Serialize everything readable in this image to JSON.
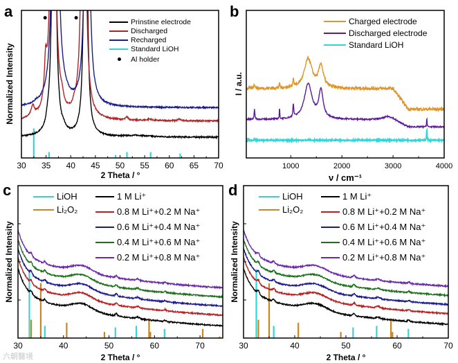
{
  "watermark": "六朝醫境",
  "chart_data": [
    {
      "id": "a",
      "type": "line",
      "letter": "a",
      "xlabel": "2 Theta / °",
      "ylabel": "Normalized Intensity",
      "xlim": [
        30,
        70
      ],
      "ylim": [
        0,
        100
      ],
      "xticks": [
        30,
        35,
        40,
        45,
        50,
        55,
        60,
        65,
        70
      ],
      "yticks": false,
      "series": [
        {
          "name": "Prinstine electrode",
          "color": "#000000",
          "base": 14,
          "peaks": [
            [
              35.3,
              4,
              0.3
            ],
            [
              36.6,
              300,
              0.35
            ],
            [
              38.6,
              2,
              0.4
            ],
            [
              43.0,
              300,
              0.3
            ],
            [
              53.5,
              1,
              3
            ]
          ]
        },
        {
          "name": "Discharged",
          "color": "#b22222",
          "base": 25,
          "peaks": [
            [
              32.3,
              7,
              0.4
            ],
            [
              34.9,
              25,
              0.3
            ],
            [
              36.4,
              300,
              0.45
            ],
            [
              38.2,
              6,
              0.4
            ],
            [
              40.8,
              3,
              0.5
            ],
            [
              42.6,
              300,
              0.4
            ],
            [
              51.4,
              2,
              0.3
            ],
            [
              56.0,
              1,
              0.5
            ],
            [
              62.0,
              1,
              0.4
            ]
          ]
        },
        {
          "name": "Recharged",
          "color": "#1a1a8c",
          "base": 34,
          "peaks": [
            [
              33.0,
              1,
              0.3
            ],
            [
              36.2,
              10,
              0.4
            ],
            [
              36.9,
              300,
              0.5
            ],
            [
              38.8,
              3,
              1.0
            ],
            [
              43.3,
              300,
              0.4
            ]
          ]
        }
      ],
      "sticks": [
        {
          "name": "Standard LiOH",
          "color": "#33d6d6",
          "values": [
            [
              32.5,
              20
            ],
            [
              35.6,
              4
            ],
            [
              49.1,
              2
            ],
            [
              51.4,
              4
            ],
            [
              56.2,
              4
            ],
            [
              62.2,
              3
            ]
          ]
        }
      ],
      "markers": {
        "name": "Al holder",
        "x": [
          34.8,
          41.1
        ],
        "y": 95
      },
      "legend": "top-right"
    },
    {
      "id": "b",
      "type": "line",
      "letter": "b",
      "xlabel": "ν / cm⁻¹",
      "ylabel": "I / a.u.",
      "xlim": [
        130,
        4000
      ],
      "ylim": [
        0,
        100
      ],
      "xticks": [
        1000,
        2000,
        3000,
        4000
      ],
      "yticks": false,
      "series": [
        {
          "name": "Charged electrode",
          "color": "#e0952a",
          "base": 47,
          "tail": [
            3000,
            -14
          ],
          "peaks": [
            [
              1340,
              20,
              90
            ],
            [
              1590,
              15,
              55
            ],
            [
              780,
              3,
              8
            ],
            [
              1050,
              6,
              10
            ],
            [
              290,
              3,
              15
            ]
          ]
        },
        {
          "name": "Discharged electrode",
          "color": "#5b1a9a",
          "base": 26,
          "tail": [
            3000,
            -5
          ],
          "peaks": [
            [
              1340,
              24,
              90
            ],
            [
              1590,
              19,
              50
            ],
            [
              290,
              7,
              8
            ],
            [
              780,
              8,
              5
            ],
            [
              1050,
              9,
              10
            ],
            [
              2900,
              2,
              100
            ],
            [
              3660,
              7,
              5
            ]
          ]
        },
        {
          "name": "Standard LiOH",
          "color": "#33d6d6",
          "base": 12,
          "peaks": [
            [
              290,
              1,
              8
            ],
            [
              3660,
              9,
              5
            ]
          ]
        }
      ],
      "legend": "top-right"
    },
    {
      "id": "c",
      "type": "line",
      "letter": "c",
      "xlabel": "2 Theta / °",
      "ylabel": "Normalized Intensity",
      "xlim": [
        30,
        75
      ],
      "ylim": [
        0,
        100
      ],
      "xticks": [
        30,
        40,
        50,
        60,
        70
      ],
      "yticks": true,
      "series": [
        {
          "name": "1 M Li⁺",
          "color": "#000000",
          "offset": 0
        },
        {
          "name": "0.8 M Li⁺+0.2 M Na⁺",
          "color": "#b22222",
          "offset": 7
        },
        {
          "name": "0.6 M Li⁺+0.4 M Na⁺",
          "color": "#1a1a8c",
          "offset": 13
        },
        {
          "name": "0.4 M Li⁺+0.6 M Na⁺",
          "color": "#1e6e1e",
          "offset": 19
        },
        {
          "name": "0.2 M Li⁺+0.8 M Na⁺",
          "color": "#6a2aa8",
          "offset": 25
        }
      ],
      "sticks": [
        {
          "name": "LiOH",
          "color": "#33d6d6",
          "values": [
            [
              32.5,
              45
            ],
            [
              35.9,
              8
            ],
            [
              51.4,
              7
            ],
            [
              56.0,
              8
            ],
            [
              62.2,
              6
            ]
          ]
        },
        {
          "name": "Li₂O₂",
          "color": "#c8861e",
          "values": [
            [
              32.9,
              12
            ],
            [
              35.0,
              36
            ],
            [
              40.7,
              10
            ],
            [
              49.0,
              4
            ],
            [
              58.8,
              13
            ],
            [
              59.1,
              4
            ],
            [
              70.6,
              6
            ],
            [
              74.3,
              1
            ]
          ]
        }
      ],
      "legend": "top"
    },
    {
      "id": "d",
      "type": "line",
      "letter": "d",
      "xlabel": "2 Theta / °",
      "ylabel": "Normalized Intensity",
      "xlim": [
        30,
        70
      ],
      "ylim": [
        0,
        100
      ],
      "xticks": [
        30,
        40,
        50,
        60,
        70
      ],
      "yticks": true,
      "series": [
        {
          "name": "1 M Li⁺",
          "color": "#000000",
          "offset": 0
        },
        {
          "name": "0.8 M Li⁺+0.2 M Na⁺",
          "color": "#b22222",
          "offset": 7
        },
        {
          "name": "0.6 M Li⁺+0.4 M Na⁺",
          "color": "#1a1a8c",
          "offset": 13
        },
        {
          "name": "0.4 M Li⁺+0.6 M Na⁺",
          "color": "#1e6e1e",
          "offset": 19
        },
        {
          "name": "0.2 M Li⁺+0.8 M Na⁺",
          "color": "#6a2aa8",
          "offset": 25
        }
      ],
      "sticks": [
        {
          "name": "LiOH",
          "color": "#33d6d6",
          "values": [
            [
              32.5,
              45
            ],
            [
              35.9,
              8
            ],
            [
              51.4,
              7
            ],
            [
              56.0,
              8
            ],
            [
              62.2,
              6
            ]
          ]
        },
        {
          "name": "Li₂O₂",
          "color": "#c8861e",
          "values": [
            [
              32.9,
              12
            ],
            [
              35.0,
              36
            ],
            [
              40.7,
              10
            ],
            [
              49.0,
              4
            ],
            [
              58.8,
              13
            ],
            [
              59.1,
              4
            ]
          ]
        }
      ],
      "legend": "top"
    }
  ]
}
